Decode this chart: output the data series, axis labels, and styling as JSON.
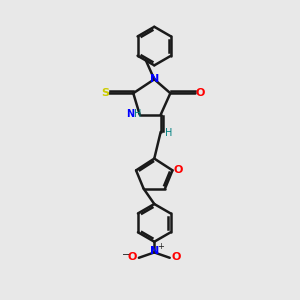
{
  "bg_color": "#e8e8e8",
  "black": "#1a1a1a",
  "blue": "#0000ff",
  "red": "#ff0000",
  "yellow": "#cccc00",
  "teal": "#008080",
  "lw": 1.8,
  "lw_thin": 1.4,
  "xlim": [
    0,
    10
  ],
  "ylim": [
    0,
    14
  ],
  "figsize": [
    3.0,
    3.0
  ],
  "dpi": 100
}
